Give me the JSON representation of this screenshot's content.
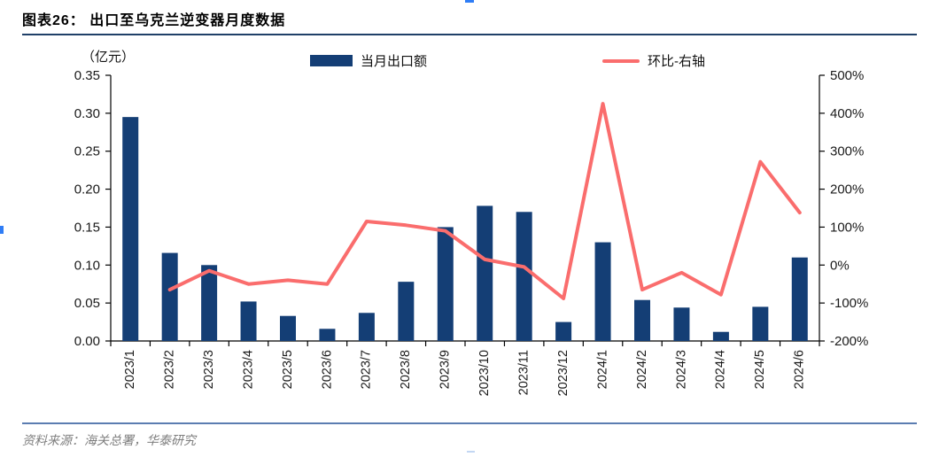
{
  "figure": {
    "title": "图表26： 出口至乌克兰逆变器月度数据",
    "axis_unit_label": "（亿元）",
    "source_note": "资料来源：海关总署，华泰研究"
  },
  "legend": [
    {
      "label": "当月出口额",
      "type": "bar",
      "color": "#143e75"
    },
    {
      "label": "环比-右轴",
      "type": "line",
      "color": "#fa6d6d"
    }
  ],
  "colors": {
    "bar": "#143e75",
    "line": "#fa6d6d",
    "axis": "#000000",
    "title_rule": "#1f4068",
    "footer_rule": "#5b7db1",
    "source_text": "#7f7f7f"
  },
  "chart_data": {
    "type": "bar+line",
    "title": "出口至乌克兰逆变器月度数据",
    "categories": [
      "2023/1",
      "2023/2",
      "2023/3",
      "2023/4",
      "2023/5",
      "2023/6",
      "2023/7",
      "2023/8",
      "2023/9",
      "2023/10",
      "2023/11",
      "2023/12",
      "2024/1",
      "2024/2",
      "2024/3",
      "2024/4",
      "2024/5",
      "2024/6"
    ],
    "series": [
      {
        "name": "当月出口额",
        "type": "bar",
        "axis": "left",
        "color": "#143e75",
        "values": [
          0.295,
          0.116,
          0.1,
          0.052,
          0.033,
          0.016,
          0.037,
          0.078,
          0.15,
          0.178,
          0.17,
          0.025,
          0.13,
          0.054,
          0.044,
          0.012,
          0.045,
          0.11
        ]
      },
      {
        "name": "环比-右轴",
        "type": "line",
        "axis": "right",
        "color": "#fa6d6d",
        "values": [
          null,
          -65,
          -15,
          -50,
          -40,
          -50,
          115,
          105,
          90,
          15,
          -5,
          -88,
          425,
          -65,
          -20,
          -78,
          272,
          138
        ]
      }
    ],
    "left_axis": {
      "unit": "（亿元）",
      "min": 0,
      "max": 0.35,
      "step": 0.05,
      "decimals": 2
    },
    "right_axis": {
      "unit": "%",
      "min": -200,
      "max": 500,
      "step": 100,
      "suffix": "%"
    },
    "grid": false,
    "legend_position": "top"
  }
}
